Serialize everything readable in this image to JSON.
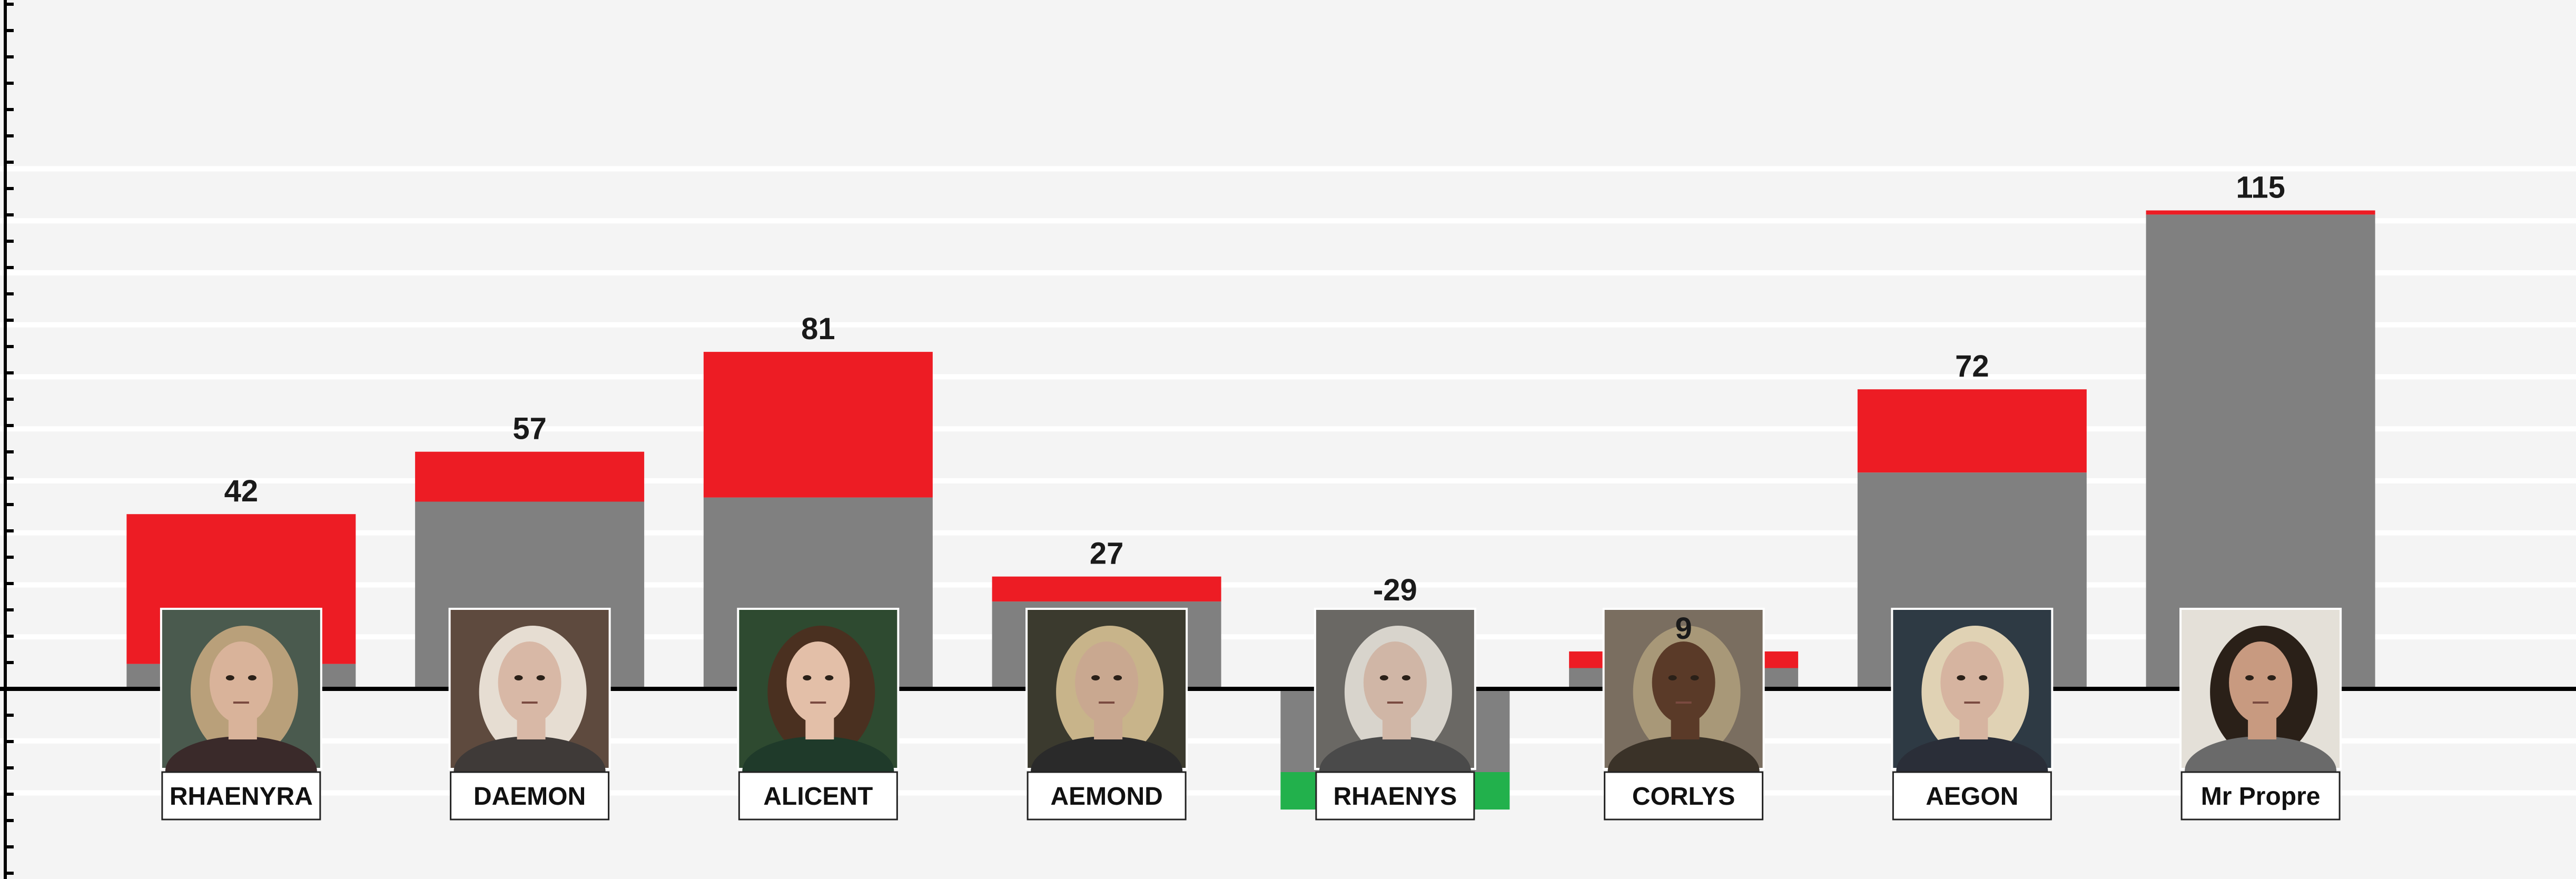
{
  "chart_data": {
    "type": "bar",
    "stacked": true,
    "categories": [
      "RHAENYRA",
      "DAEMON",
      "ALICENT",
      "AEMOND",
      "RHAENYS",
      "CORLYS",
      "AEGON",
      "Mr Propre"
    ],
    "totals": [
      42,
      57,
      81,
      27,
      -29,
      9,
      72,
      115
    ],
    "series": [
      {
        "color": "#808080",
        "values": [
          6,
          45,
          46,
          21,
          -20,
          5,
          52,
          114
        ]
      },
      {
        "color": "#ed1c24",
        "values": [
          36,
          12,
          35,
          6,
          0,
          4,
          20,
          1
        ]
      },
      {
        "color": "#22b14c",
        "values": [
          0,
          0,
          0,
          0,
          -9,
          0,
          0,
          0
        ]
      }
    ],
    "ylim": [
      -36,
      130
    ],
    "grid": true,
    "legend": "none",
    "colors": {
      "background": "#f4f4f4",
      "gridline": "#ffffff",
      "axis": "#000000",
      "portrait_frame": "#ffffff"
    },
    "portraits": [
      {
        "icon": "crowned-woman-portrait-icon",
        "skin": "#d9b39a",
        "hair": "#b9a07a",
        "cloth": "#3a2a2a",
        "bg": "#4a5a4e"
      },
      {
        "icon": "silver-haired-man-portrait-icon",
        "skin": "#d8b8a6",
        "hair": "#e6ddd2",
        "cloth": "#3f3a38",
        "bg": "#5e4a3e"
      },
      {
        "icon": "dark-haired-woman-portrait-icon",
        "skin": "#e3bfa8",
        "hair": "#4a3020",
        "cloth": "#1f3a2a",
        "bg": "#2e4a30"
      },
      {
        "icon": "blond-man-portrait-icon",
        "skin": "#c9a890",
        "hair": "#c8b48a",
        "cloth": "#2a2a2a",
        "bg": "#3b3a2e"
      },
      {
        "icon": "grey-haired-woman-portrait-icon",
        "skin": "#d0b6a6",
        "hair": "#d8d4cc",
        "cloth": "#4a4a4a",
        "bg": "#6a6864"
      },
      {
        "icon": "bearded-man-portrait-icon",
        "skin": "#5a3a28",
        "hair": "#a89878",
        "cloth": "#3a3228",
        "bg": "#7a6e60"
      },
      {
        "icon": "young-blond-man-portrait-icon",
        "skin": "#d6b4a0",
        "hair": "#e0d2b4",
        "cloth": "#2a2e38",
        "bg": "#2e3a44"
      },
      {
        "icon": "dark-haired-man-portrait-icon",
        "skin": "#c89a80",
        "hair": "#2a2018",
        "cloth": "#6a6a6a",
        "bg": "#e4e0d8"
      }
    ]
  }
}
